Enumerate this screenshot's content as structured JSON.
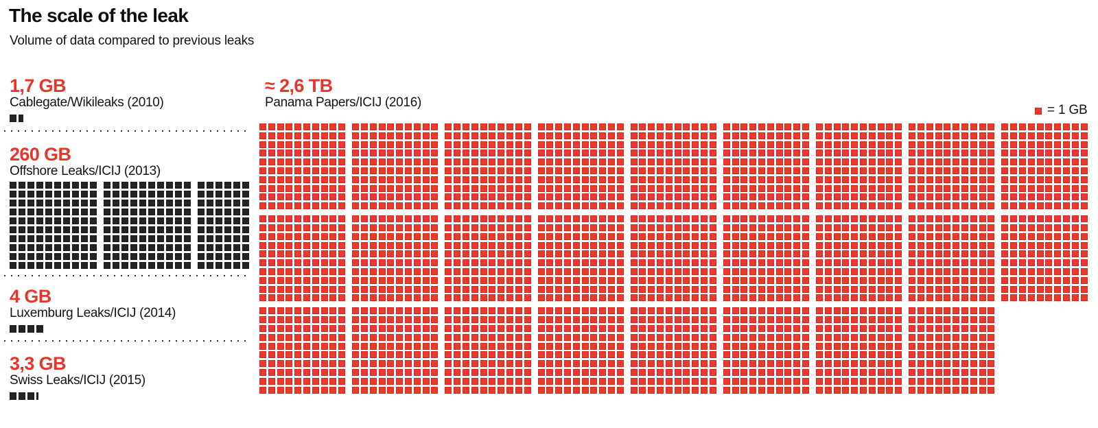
{
  "header": {
    "title": "The scale of the leak",
    "subtitle": "Volume of data compared to previous leaks"
  },
  "legend": {
    "label": "= 1 GB"
  },
  "colors": {
    "accent_red_text": "#e8352b",
    "red_square": "#ee382d",
    "dark_square": "#242424"
  },
  "chart_data": {
    "type": "waffle",
    "unit": "1 square = 1 GB",
    "legend_label": "= 1 GB",
    "leaks": [
      {
        "value_label": "1,7 GB",
        "name": "Cablegate/Wikileaks (2010)",
        "gb": 1.7,
        "square_color": "dark"
      },
      {
        "value_label": "260 GB",
        "name": "Offshore Leaks/ICIJ (2013)",
        "gb": 260,
        "square_color": "dark"
      },
      {
        "value_label": "4 GB",
        "name": "Luxemburg Leaks/ICIJ (2014)",
        "gb": 4,
        "square_color": "dark"
      },
      {
        "value_label": "3,3 GB",
        "name": "Swiss Leaks/ICIJ (2015)",
        "gb": 3.3,
        "square_color": "dark"
      },
      {
        "value_label": "≈ 2,6 TB",
        "name": "Panama Papers/ICIJ (2016)",
        "gb": 2600,
        "square_color": "red"
      }
    ],
    "layout": {
      "offshore_groups_cols": [
        10,
        10,
        6
      ],
      "rows_per_group": 10,
      "panama_block_squares": 100,
      "panama_blocks_per_row": [
        9,
        9,
        8
      ]
    }
  }
}
